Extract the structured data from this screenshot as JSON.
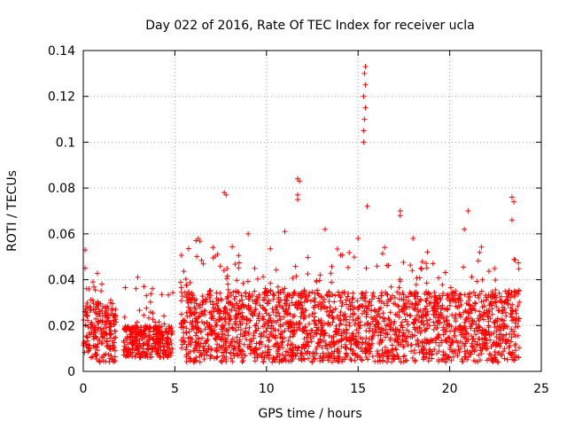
{
  "chart_data": {
    "type": "scatter",
    "title": "Day 022 of 2016, Rate Of TEC Index for receiver ucla",
    "xlabel": "GPS time / hours",
    "ylabel": "ROTI / TECUs",
    "xlim": [
      0,
      25
    ],
    "ylim": [
      0,
      0.14
    ],
    "xticks": [
      0,
      5,
      10,
      15,
      20,
      25
    ],
    "yticks": [
      0,
      0.02,
      0.04,
      0.06,
      0.08,
      0.1,
      0.12,
      0.14
    ],
    "xtick_labels": [
      "0",
      "5",
      "10",
      "15",
      "20",
      "25"
    ],
    "ytick_labels": [
      "0",
      "0.02",
      "0.04",
      "0.06",
      "0.08",
      "0.1",
      "0.12",
      "0.14"
    ],
    "grid": true,
    "legend": "none",
    "marker": "+",
    "color": "#ff0000",
    "segments": [
      {
        "x_start": 0.0,
        "x_end": 1.8,
        "y_low": 0.004,
        "y_high": 0.03,
        "max": 0.053
      },
      {
        "x_start": 2.2,
        "x_end": 4.9,
        "y_low": 0.006,
        "y_high": 0.02,
        "max": 0.045
      },
      {
        "x_start": 5.3,
        "x_end": 23.8,
        "y_low": 0.004,
        "y_high": 0.035,
        "max": 0.06
      }
    ],
    "peaks": [
      {
        "x": 15.3,
        "y": 0.1
      },
      {
        "x": 15.3,
        "y": 0.105
      },
      {
        "x": 15.35,
        "y": 0.11
      },
      {
        "x": 15.4,
        "y": 0.115
      },
      {
        "x": 15.3,
        "y": 0.12
      },
      {
        "x": 15.4,
        "y": 0.125
      },
      {
        "x": 15.35,
        "y": 0.13
      },
      {
        "x": 15.4,
        "y": 0.133
      },
      {
        "x": 7.7,
        "y": 0.078
      },
      {
        "x": 7.8,
        "y": 0.077
      },
      {
        "x": 11.7,
        "y": 0.084
      },
      {
        "x": 11.8,
        "y": 0.083
      },
      {
        "x": 11.7,
        "y": 0.077
      },
      {
        "x": 11.7,
        "y": 0.075
      },
      {
        "x": 15.5,
        "y": 0.072
      },
      {
        "x": 17.3,
        "y": 0.07
      },
      {
        "x": 17.3,
        "y": 0.068
      },
      {
        "x": 21.0,
        "y": 0.07
      },
      {
        "x": 23.4,
        "y": 0.076
      },
      {
        "x": 23.5,
        "y": 0.074
      },
      {
        "x": 23.4,
        "y": 0.066
      },
      {
        "x": 9.0,
        "y": 0.06
      },
      {
        "x": 11.0,
        "y": 0.061
      },
      {
        "x": 13.2,
        "y": 0.062
      },
      {
        "x": 15.0,
        "y": 0.058
      },
      {
        "x": 18.0,
        "y": 0.058
      },
      {
        "x": 20.8,
        "y": 0.062
      },
      {
        "x": 0.1,
        "y": 0.053
      },
      {
        "x": 0.1,
        "y": 0.045
      }
    ]
  }
}
